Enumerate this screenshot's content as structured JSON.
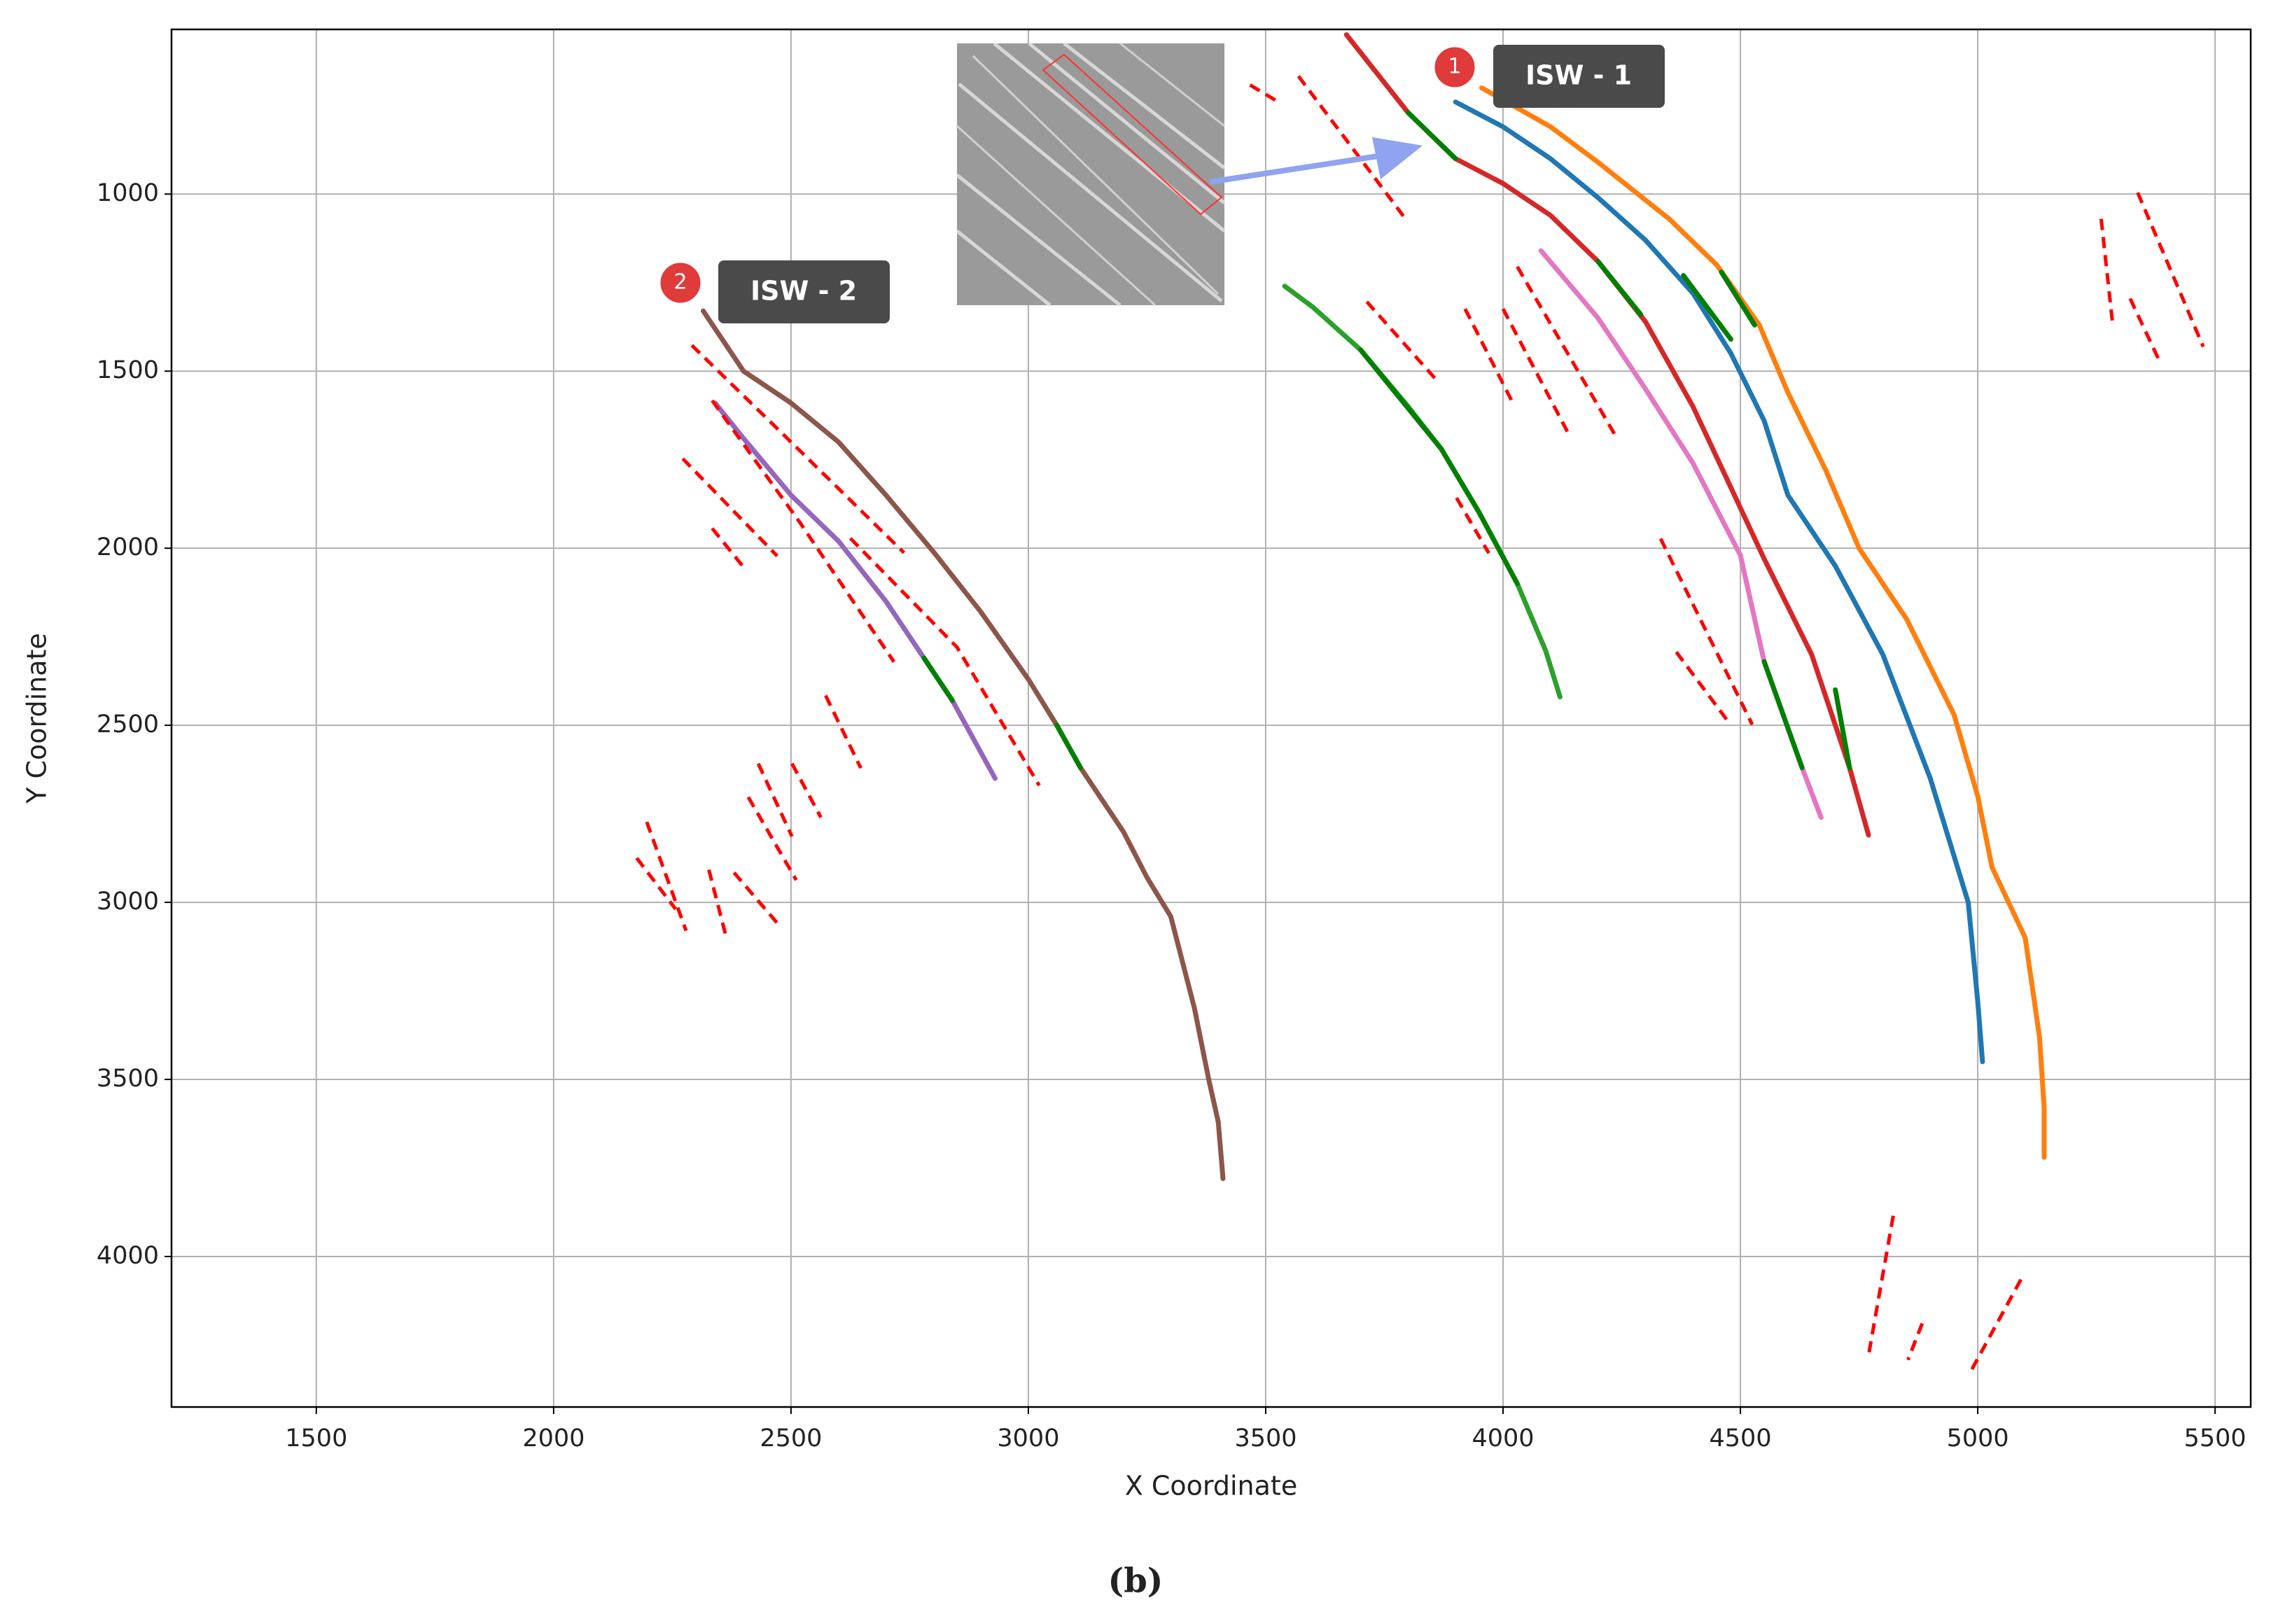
{
  "chart_data": {
    "type": "line",
    "x_label": "X Coordinate",
    "y_label": "Y Coordinate",
    "caption": "(b)",
    "xlim": [
      1195,
      5575
    ],
    "ylim": [
      4425,
      535
    ],
    "xticks": [
      1500,
      2000,
      2500,
      3000,
      3500,
      4000,
      4500,
      5000,
      5500
    ],
    "yticks": [
      1000,
      1500,
      2000,
      2500,
      3000,
      3500,
      4000
    ],
    "grid": true,
    "annotations": [
      {
        "badge": "1",
        "label": "ISW - 1"
      },
      {
        "badge": "2",
        "label": "ISW - 2"
      }
    ],
    "series": [
      {
        "color": "#8c564b",
        "x": [
          2315,
          2400,
          2500,
          2600,
          2700,
          2800,
          2900,
          3000,
          3060,
          3110,
          3200,
          3250,
          3300,
          3350,
          3380,
          3400,
          3410
        ],
        "values": [
          1330,
          1500,
          1590,
          1700,
          1850,
          2010,
          2180,
          2370,
          2500,
          2620,
          2800,
          2930,
          3040,
          3300,
          3500,
          3620,
          3780
        ]
      },
      {
        "color": "#9467bd",
        "x": [
          2340,
          2400,
          2500,
          2600,
          2700,
          2780,
          2840,
          2930
        ],
        "values": [
          1590,
          1690,
          1850,
          1980,
          2150,
          2310,
          2430,
          2650
        ]
      },
      {
        "color": "#2ca02c",
        "x": [
          3540,
          3600,
          3700,
          3800,
          3870,
          3950,
          4030,
          4090,
          4120
        ],
        "values": [
          1260,
          1320,
          1440,
          1600,
          1720,
          1900,
          2100,
          2290,
          2420
        ]
      },
      {
        "color": "#d62728",
        "x": [
          3670,
          3800,
          3900,
          4000,
          4100,
          4200,
          4300,
          4400,
          4470,
          4550,
          4650,
          4730,
          4770
        ],
        "values": [
          550,
          770,
          900,
          970,
          1060,
          1190,
          1360,
          1600,
          1800,
          2030,
          2300,
          2620,
          2810
        ]
      },
      {
        "color": "#1f77b4",
        "x": [
          3900,
          4000,
          4100,
          4200,
          4300,
          4400,
          4480,
          4550,
          4600,
          4700,
          4800,
          4900,
          4980,
          5000,
          5010
        ],
        "values": [
          740,
          810,
          900,
          1010,
          1130,
          1280,
          1450,
          1640,
          1850,
          2050,
          2300,
          2650,
          3000,
          3280,
          3450
        ]
      },
      {
        "color": "#ff7f0e",
        "x": [
          3955,
          4100,
          4200,
          4350,
          4450,
          4540,
          4600,
          4680,
          4750,
          4850,
          4950,
          5000,
          5030,
          5100,
          5130,
          5140,
          5140
        ],
        "values": [
          700,
          810,
          910,
          1070,
          1200,
          1370,
          1560,
          1780,
          2000,
          2200,
          2470,
          2700,
          2900,
          3100,
          3380,
          3580,
          3720
        ]
      },
      {
        "color": "#e377c2",
        "x": [
          4080,
          4200,
          4300,
          4400,
          4500,
          4550,
          4630,
          4670
        ],
        "values": [
          1160,
          1350,
          1550,
          1760,
          2020,
          2320,
          2620,
          2760
        ]
      },
      {
        "color": "#008000",
        "x": [
          3060,
          3110
        ],
        "values": [
          2500,
          2620
        ]
      },
      {
        "color": "#008000",
        "x": [
          2780,
          2840
        ],
        "values": [
          2310,
          2430
        ]
      },
      {
        "color": "#008000",
        "x": [
          3800,
          3900
        ],
        "values": [
          770,
          900
        ]
      },
      {
        "color": "#008000",
        "x": [
          4200,
          4290
        ],
        "values": [
          1190,
          1340
        ]
      },
      {
        "color": "#008000",
        "x": [
          4380,
          4480
        ],
        "values": [
          1230,
          1410
        ]
      },
      {
        "color": "#008000",
        "x": [
          4460,
          4530
        ],
        "values": [
          1220,
          1370
        ]
      },
      {
        "color": "#008000",
        "x": [
          4550,
          4630
        ],
        "values": [
          2320,
          2620
        ]
      },
      {
        "color": "#008000",
        "x": [
          4700,
          4730
        ],
        "values": [
          2400,
          2620
        ]
      },
      {
        "color": "#008000",
        "x": [
          3700,
          3870,
          3950,
          4030
        ],
        "values": [
          1440,
          1720,
          1900,
          2100
        ]
      },
      {
        "color": "#ff0000",
        "dash": true,
        "x": [
          2291,
          2500,
          2738
        ],
        "values": [
          1427,
          1700,
          2013
        ]
      },
      {
        "color": "#ff0000",
        "dash": true,
        "x": [
          2272,
          2471
        ],
        "values": [
          1747,
          2022
        ]
      },
      {
        "color": "#ff0000",
        "dash": true,
        "x": [
          2334,
          2520,
          2717
        ],
        "values": [
          1583,
          1930,
          2321
        ]
      },
      {
        "color": "#ff0000",
        "dash": true,
        "x": [
          2334,
          2401
        ],
        "values": [
          1944,
          2055
        ]
      },
      {
        "color": "#ff0000",
        "dash": true,
        "x": [
          2625,
          2850,
          3023
        ],
        "values": [
          1972,
          2280,
          2670
        ]
      },
      {
        "color": "#ff0000",
        "dash": true,
        "x": [
          2573,
          2647
        ],
        "values": [
          2416,
          2621
        ]
      },
      {
        "color": "#ff0000",
        "dash": true,
        "x": [
          2196,
          2279
        ],
        "values": [
          2773,
          3080
        ]
      },
      {
        "color": "#ff0000",
        "dash": true,
        "x": [
          2175,
          2257
        ],
        "values": [
          2875,
          3019
        ]
      },
      {
        "color": "#ff0000",
        "dash": true,
        "x": [
          2410,
          2511
        ],
        "values": [
          2703,
          2937
        ]
      },
      {
        "color": "#ff0000",
        "dash": true,
        "x": [
          2431,
          2502
        ],
        "values": [
          2608,
          2814
        ]
      },
      {
        "color": "#ff0000",
        "dash": true,
        "x": [
          2502,
          2563
        ],
        "values": [
          2608,
          2760
        ]
      },
      {
        "color": "#ff0000",
        "dash": true,
        "x": [
          2327,
          2364
        ],
        "values": [
          2908,
          3101
        ]
      },
      {
        "color": "#ff0000",
        "dash": true,
        "x": [
          2380,
          2472
        ],
        "values": [
          2916,
          3060
        ]
      },
      {
        "color": "#ff0000",
        "dash": true,
        "x": [
          3467,
          3528
        ],
        "values": [
          692,
          741
        ]
      },
      {
        "color": "#ff0000",
        "dash": true,
        "x": [
          3569,
          3790
        ],
        "values": [
          667,
          1062
        ]
      },
      {
        "color": "#ff0000",
        "dash": true,
        "x": [
          3713,
          3857
        ],
        "values": [
          1304,
          1521
        ]
      },
      {
        "color": "#ff0000",
        "dash": true,
        "x": [
          3920,
          4018
        ],
        "values": [
          1324,
          1583
        ]
      },
      {
        "color": "#ff0000",
        "dash": true,
        "x": [
          4000,
          4138
        ],
        "values": [
          1324,
          1677
        ]
      },
      {
        "color": "#ff0000",
        "dash": true,
        "x": [
          4030,
          4238
        ],
        "values": [
          1205,
          1685
        ]
      },
      {
        "color": "#ff0000",
        "dash": true,
        "x": [
          3902,
          3970
        ],
        "values": [
          1858,
          2014
        ]
      },
      {
        "color": "#ff0000",
        "dash": true,
        "x": [
          4332,
          4525
        ],
        "values": [
          1973,
          2498
        ]
      },
      {
        "color": "#ff0000",
        "dash": true,
        "x": [
          4365,
          4479
        ],
        "values": [
          2293,
          2498
        ]
      },
      {
        "color": "#ff0000",
        "dash": true,
        "x": [
          5260,
          5284
        ],
        "values": [
          1070,
          1365
        ]
      },
      {
        "color": "#ff0000",
        "dash": true,
        "x": [
          5337,
          5475
        ],
        "values": [
          996,
          1431
        ]
      },
      {
        "color": "#ff0000",
        "dash": true,
        "x": [
          5321,
          5383
        ],
        "values": [
          1295,
          1472
        ]
      },
      {
        "color": "#ff0000",
        "dash": true,
        "x": [
          4822,
          4770
        ],
        "values": [
          3885,
          4279
        ]
      },
      {
        "color": "#ff0000",
        "dash": true,
        "x": [
          4883,
          4853
        ],
        "values": [
          4189,
          4292
        ]
      },
      {
        "color": "#ff0000",
        "dash": true,
        "x": [
          5091,
          4987
        ],
        "values": [
          4065,
          4320
        ]
      }
    ]
  }
}
